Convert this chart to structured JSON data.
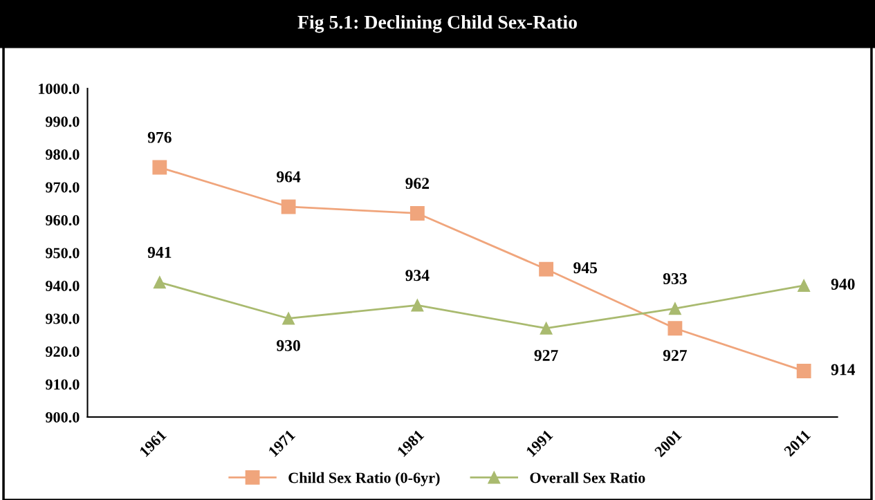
{
  "chart_data": {
    "type": "line",
    "title": "Fig 5.1: Declining Child Sex-Ratio",
    "categories": [
      "1961",
      "1971",
      "1981",
      "1991",
      "2001",
      "2011"
    ],
    "series": [
      {
        "name": "Child Sex Ratio (0-6yr)",
        "color": "#f0a57c",
        "marker": "square",
        "values": [
          976,
          964,
          962,
          945,
          927,
          914
        ]
      },
      {
        "name": "Overall Sex Ratio",
        "color": "#a9ba6f",
        "marker": "triangle",
        "values": [
          941,
          930,
          934,
          927,
          933,
          940
        ]
      }
    ],
    "ylim": [
      900,
      1000
    ],
    "yticks": [
      {
        "value": 900,
        "label": "900.0"
      },
      {
        "value": 910,
        "label": "910.0"
      },
      {
        "value": 920,
        "label": "920.0"
      },
      {
        "value": 930,
        "label": "930.0"
      },
      {
        "value": 940,
        "label": "940.0"
      },
      {
        "value": 950,
        "label": "950.0"
      },
      {
        "value": 960,
        "label": "960.0"
      },
      {
        "value": 970,
        "label": "970.0"
      },
      {
        "value": 980,
        "label": "980.0"
      },
      {
        "value": 990,
        "label": "990.0"
      },
      {
        "value": 1000,
        "label": "1000.0"
      }
    ],
    "data_labels": true,
    "legend": "bottom",
    "grid": false,
    "line_style": "solid"
  }
}
